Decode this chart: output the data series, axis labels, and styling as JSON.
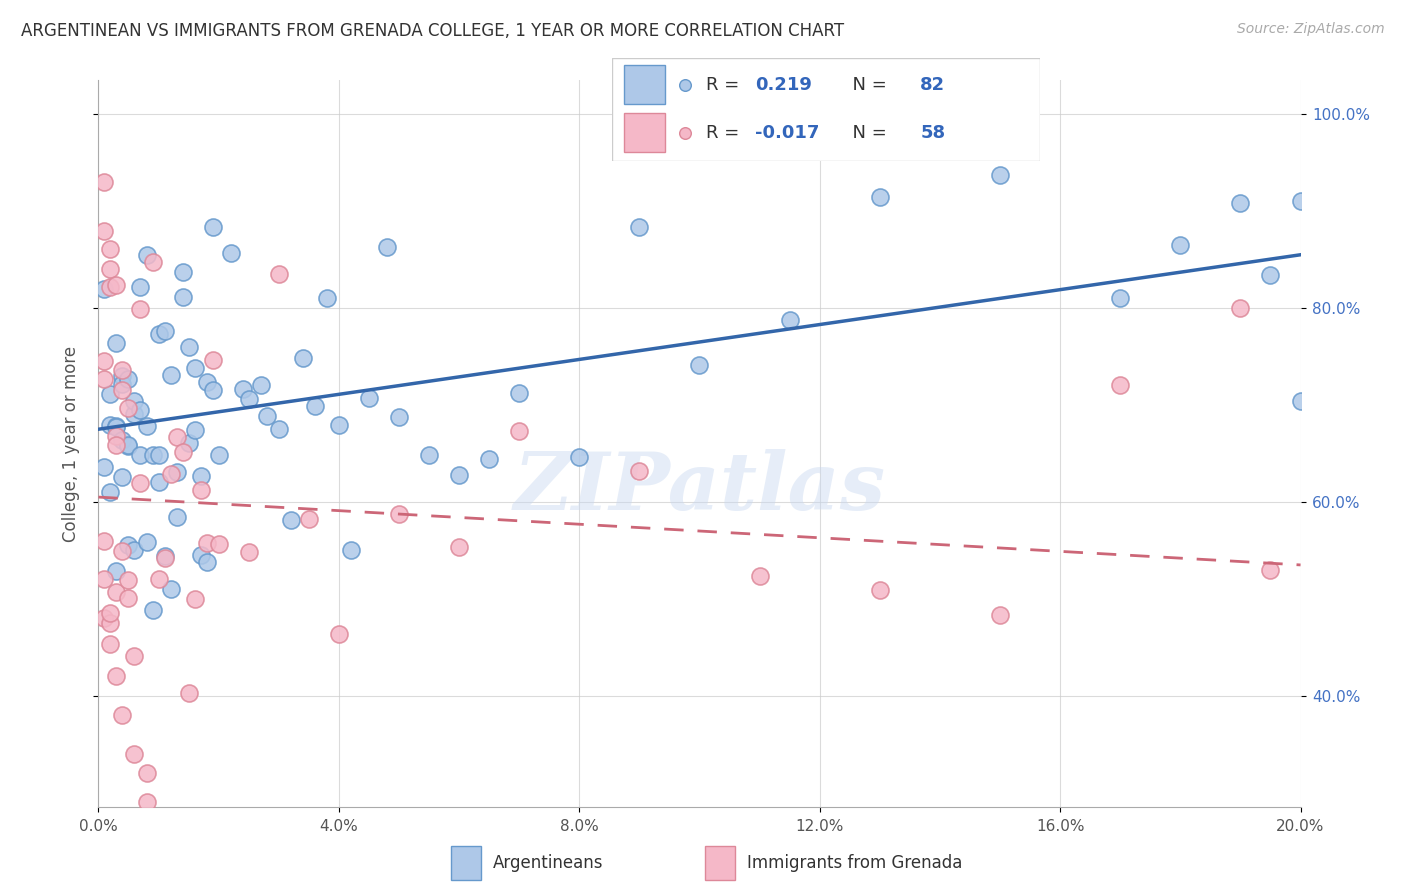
{
  "title": "ARGENTINEAN VS IMMIGRANTS FROM GRENADA COLLEGE, 1 YEAR OR MORE CORRELATION CHART",
  "source": "Source: ZipAtlas.com",
  "ylabel": "College, 1 year or more",
  "legend_label1": "Argentineans",
  "legend_label2": "Immigrants from Grenada",
  "blue_face": "#aec8e8",
  "blue_edge": "#6699cc",
  "pink_face": "#f5b8c8",
  "pink_edge": "#dd8899",
  "blue_line_color": "#3366aa",
  "pink_line_color": "#cc6677",
  "legend_text_color": "#3366bb",
  "background_color": "#ffffff",
  "grid_color": "#cccccc",
  "title_color": "#333333",
  "right_axis_color": "#4472c4",
  "xmin": 0.0,
  "xmax": 0.2,
  "ymin": 0.285,
  "ymax": 1.035,
  "blue_R": 0.219,
  "blue_N": 82,
  "pink_R": -0.017,
  "pink_N": 58,
  "blue_line_y0": 0.675,
  "blue_line_y1": 0.855,
  "pink_line_y0": 0.605,
  "pink_line_y1": 0.535
}
